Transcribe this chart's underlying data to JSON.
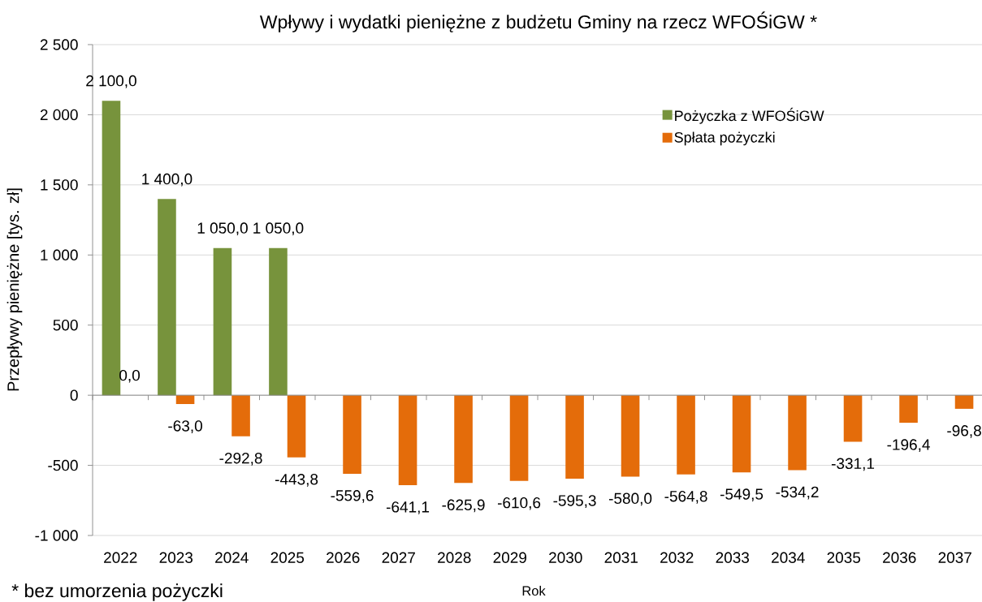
{
  "chart_data": {
    "type": "bar",
    "title": "Wpływy i wydatki pieniężne z budżetu Gminy na rzecz WFOŚiGW *",
    "xlabel": "Rok",
    "ylabel": "Przepływy pieniężne [tys. zł]",
    "annotations": [
      "* bez umorzenia pożyczki"
    ],
    "categories": [
      "2022",
      "2023",
      "2024",
      "2025",
      "2026",
      "2027",
      "2028",
      "2029",
      "2030",
      "2031",
      "2032",
      "2033",
      "2034",
      "2035",
      "2036",
      "2037"
    ],
    "series": [
      {
        "name": "Pożyczka z WFOŚiGW",
        "color": "#77933c",
        "values": [
          2100,
          1400,
          1050,
          1050,
          null,
          null,
          null,
          null,
          null,
          null,
          null,
          null,
          null,
          null,
          null,
          null
        ],
        "value_labels": [
          "2 100,0",
          "1 400,0",
          "1 050,0",
          "1 050,0",
          null,
          null,
          null,
          null,
          null,
          null,
          null,
          null,
          null,
          null,
          null,
          null
        ]
      },
      {
        "name": "Spłata pożyczki",
        "color": "#e46c0a",
        "values": [
          0,
          -63,
          -292.8,
          -443.8,
          -559.6,
          -641.1,
          -625.9,
          -610.6,
          -595.3,
          -580,
          -564.8,
          -549.5,
          -534.2,
          -331.1,
          -196.4,
          -96.8
        ],
        "value_labels": [
          "0,0",
          "-63,0",
          "-292,8",
          "-443,8",
          "-559,6",
          "-641,1",
          "-625,9",
          "-610,6",
          "-595,3",
          "-580,0",
          "-564,8",
          "-549,5",
          "-534,2",
          "-331,1",
          "-196,4",
          "-96,8"
        ]
      }
    ],
    "ylim": [
      -1000,
      2500
    ],
    "yticks": [
      {
        "value": 2500,
        "label": "2 500"
      },
      {
        "value": 2000,
        "label": "2 000"
      },
      {
        "value": 1500,
        "label": "1 500"
      },
      {
        "value": 1000,
        "label": "1 000"
      },
      500,
      0,
      -500,
      {
        "value": -1000,
        "label": "-1 000"
      }
    ],
    "grid": "y",
    "legend": "top right"
  }
}
